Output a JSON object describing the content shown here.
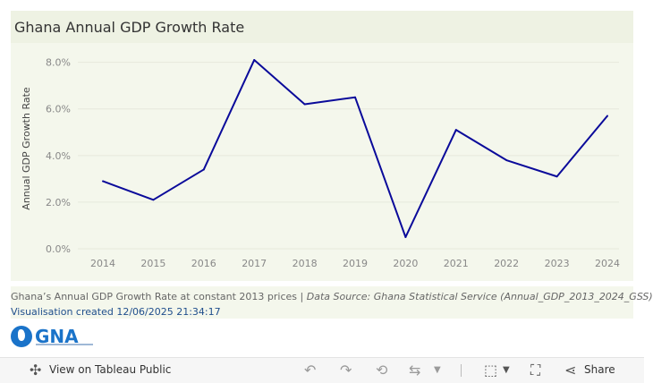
{
  "title": "Ghana Annual GDP Growth Rate",
  "chart_data": {
    "type": "line",
    "title": "Ghana Annual GDP Growth Rate",
    "ylabel": "Annual GDP Growth Rate",
    "xlabel": "",
    "x": [
      "2014",
      "2015",
      "2016",
      "2017",
      "2018",
      "2019",
      "2020",
      "2021",
      "2022",
      "2023",
      "2024"
    ],
    "series": [
      {
        "values": [
          2.9,
          2.1,
          3.4,
          8.1,
          6.2,
          6.5,
          0.5,
          5.1,
          3.8,
          3.1,
          5.7
        ],
        "color": "#0a0a9a"
      }
    ],
    "ylim": [
      0,
      8.6
    ],
    "yticks": [
      0,
      2,
      4,
      6,
      8
    ],
    "ytick_labels": [
      "0.0%",
      "2.0%",
      "4.0%",
      "6.0%",
      "8.0%"
    ],
    "grid": true,
    "legend": "none"
  },
  "caption": {
    "text": "Ghana’s Annual GDP Growth Rate at constant 2013 prices | ",
    "source": "Data Source: Ghana Statistical Service (Annual_GDP_2013_2024_GSS)",
    "created": "Visualisation created 12/06/2025 21:34:17"
  },
  "logo": {
    "text": "GNA"
  },
  "toolbar": {
    "view_label": "View on Tableau Public",
    "share_label": "Share",
    "icons": [
      "tableau-icon",
      "undo-icon",
      "redo-icon",
      "revert-icon",
      "refresh-icon",
      "download-icon",
      "fullscreen-icon",
      "share-icon"
    ]
  },
  "colors": {
    "line": "#0a0a9a",
    "panel": "#f4f7ec",
    "title_bg": "#eef2e3"
  }
}
